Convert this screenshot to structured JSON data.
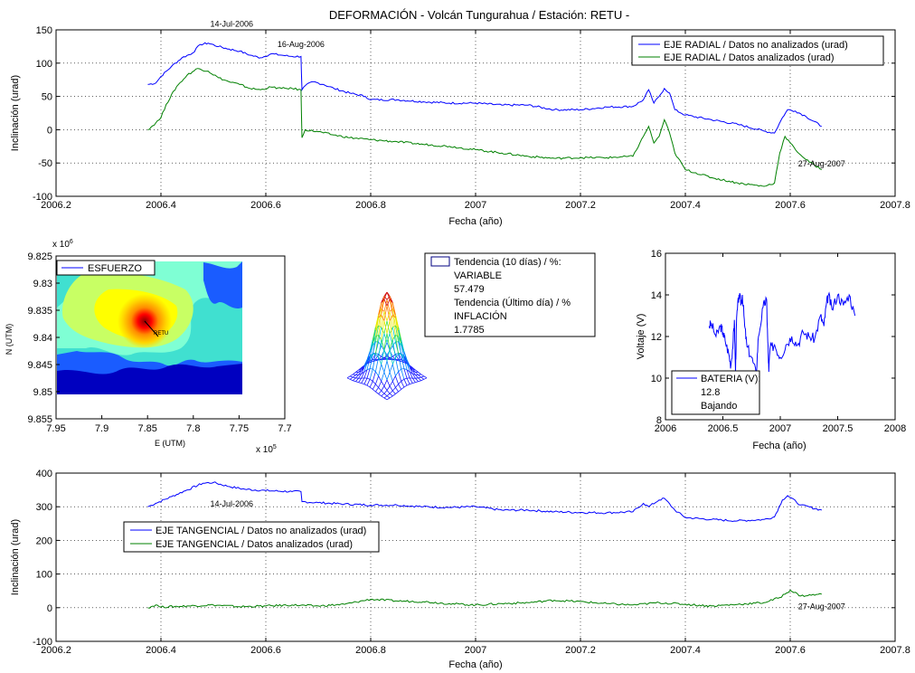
{
  "title": "DEFORMACIÓN - Volcán Tungurahua  /  Estación: RETU -",
  "colors": {
    "blue": "#0000ff",
    "green": "#008000",
    "grid": "#000000",
    "marker": "#000000"
  },
  "chart_data": [
    {
      "id": "radial",
      "type": "line",
      "xlabel": "Fecha (año)",
      "ylabel": "Inclinación (urad)",
      "xlim": [
        2006.2,
        2007.8
      ],
      "ylim": [
        -100,
        150
      ],
      "xticks": [
        2006.2,
        2006.4,
        2006.6,
        2006.8,
        2007,
        2007.2,
        2007.4,
        2007.6,
        2007.8
      ],
      "xtick_labels": [
        "2006.2",
        "2006.4",
        "2006.6",
        "2006.8",
        "2007",
        "2007.2",
        "2007.4",
        "2007.6",
        "2007.8"
      ],
      "yticks": [
        -100,
        -50,
        0,
        50,
        100,
        150
      ],
      "ytick_labels": [
        "-100",
        "-50",
        "0",
        "50",
        "100",
        "150"
      ],
      "grid": true,
      "legend_loc": "top-right",
      "series": [
        {
          "name": "EJE RADIAL / Datos no analizados (urad)",
          "color": "#0000ff",
          "points": [
            [
              2006.375,
              68
            ],
            [
              2006.39,
              70
            ],
            [
              2006.4,
              80
            ],
            [
              2006.42,
              95
            ],
            [
              2006.44,
              108
            ],
            [
              2006.46,
              115
            ],
            [
              2006.475,
              128
            ],
            [
              2006.49,
              130
            ],
            [
              2006.51,
              125
            ],
            [
              2006.53,
              121
            ],
            [
              2006.55,
              118
            ],
            [
              2006.57,
              112
            ],
            [
              2006.59,
              108
            ],
            [
              2006.61,
              114
            ],
            [
              2006.63,
              112
            ],
            [
              2006.65,
              110
            ],
            [
              2006.667,
              110
            ],
            [
              2006.669,
              60
            ],
            [
              2006.675,
              66
            ],
            [
              2006.69,
              72
            ],
            [
              2006.71,
              68
            ],
            [
              2006.73,
              62
            ],
            [
              2006.76,
              55
            ],
            [
              2006.79,
              50
            ],
            [
              2006.8,
              45
            ],
            [
              2006.85,
              45
            ],
            [
              2006.9,
              42
            ],
            [
              2006.95,
              40
            ],
            [
              2007.0,
              40
            ],
            [
              2007.05,
              37
            ],
            [
              2007.1,
              37
            ],
            [
              2007.15,
              30
            ],
            [
              2007.2,
              30
            ],
            [
              2007.25,
              34
            ],
            [
              2007.3,
              35
            ],
            [
              2007.32,
              45
            ],
            [
              2007.33,
              60
            ],
            [
              2007.34,
              40
            ],
            [
              2007.35,
              50
            ],
            [
              2007.36,
              62
            ],
            [
              2007.37,
              55
            ],
            [
              2007.38,
              30
            ],
            [
              2007.4,
              22
            ],
            [
              2007.45,
              15
            ],
            [
              2007.5,
              8
            ],
            [
              2007.55,
              -2
            ],
            [
              2007.57,
              -5
            ],
            [
              2007.585,
              18
            ],
            [
              2007.595,
              30
            ],
            [
              2007.61,
              28
            ],
            [
              2007.63,
              20
            ],
            [
              2007.66,
              5
            ]
          ]
        },
        {
          "name": "EJE RADIAL / Datos analizados (urad)",
          "color": "#008000",
          "points": [
            [
              2006.375,
              0
            ],
            [
              2006.39,
              10
            ],
            [
              2006.4,
              18
            ],
            [
              2006.41,
              38
            ],
            [
              2006.43,
              65
            ],
            [
              2006.45,
              82
            ],
            [
              2006.47,
              92
            ],
            [
              2006.49,
              88
            ],
            [
              2006.51,
              78
            ],
            [
              2006.53,
              72
            ],
            [
              2006.55,
              68
            ],
            [
              2006.57,
              62
            ],
            [
              2006.59,
              60
            ],
            [
              2006.61,
              64
            ],
            [
              2006.63,
              62
            ],
            [
              2006.65,
              62
            ],
            [
              2006.667,
              60
            ],
            [
              2006.669,
              -12
            ],
            [
              2006.675,
              0
            ],
            [
              2006.7,
              -3
            ],
            [
              2006.73,
              -8
            ],
            [
              2006.76,
              -12
            ],
            [
              2006.8,
              -15
            ],
            [
              2006.85,
              -18
            ],
            [
              2006.9,
              -22
            ],
            [
              2006.95,
              -25
            ],
            [
              2007.0,
              -30
            ],
            [
              2007.05,
              -35
            ],
            [
              2007.1,
              -40
            ],
            [
              2007.15,
              -43
            ],
            [
              2007.2,
              -42
            ],
            [
              2007.25,
              -42
            ],
            [
              2007.3,
              -40
            ],
            [
              2007.32,
              -10
            ],
            [
              2007.33,
              5
            ],
            [
              2007.34,
              -20
            ],
            [
              2007.35,
              -10
            ],
            [
              2007.36,
              15
            ],
            [
              2007.37,
              -5
            ],
            [
              2007.38,
              -35
            ],
            [
              2007.4,
              -60
            ],
            [
              2007.45,
              -72
            ],
            [
              2007.5,
              -80
            ],
            [
              2007.55,
              -85
            ],
            [
              2007.57,
              -80
            ],
            [
              2007.58,
              -35
            ],
            [
              2007.59,
              -10
            ],
            [
              2007.61,
              -30
            ],
            [
              2007.63,
              -45
            ],
            [
              2007.66,
              -60
            ]
          ]
        }
      ],
      "annotations": [
        {
          "text": "14-Jul-2006",
          "x": 2006.535,
          "y": 155
        },
        {
          "text": "16-Aug-2006",
          "x": 2006.667,
          "y": 124
        },
        {
          "text": "27-Aug-2007",
          "x": 2007.66,
          "y": -55
        }
      ]
    },
    {
      "id": "tangencial",
      "type": "line",
      "xlabel": "Fecha (año)",
      "ylabel": "Inclinación (urad)",
      "xlim": [
        2006.2,
        2007.8
      ],
      "ylim": [
        -100,
        400
      ],
      "xticks": [
        2006.2,
        2006.4,
        2006.6,
        2006.8,
        2007,
        2007.2,
        2007.4,
        2007.6,
        2007.8
      ],
      "xtick_labels": [
        "2006.2",
        "2006.4",
        "2006.6",
        "2006.8",
        "2007",
        "2007.2",
        "2007.4",
        "2007.6",
        "2007.8"
      ],
      "yticks": [
        -100,
        0,
        100,
        200,
        300,
        400
      ],
      "ytick_labels": [
        "-100",
        "0",
        "100",
        "200",
        "300",
        "400"
      ],
      "grid": true,
      "legend_loc": "center-left",
      "series": [
        {
          "name": "EJE TANGENCIAL / Datos no analizados (urad)",
          "color": "#0000ff",
          "points": [
            [
              2006.375,
              300
            ],
            [
              2006.39,
              310
            ],
            [
              2006.42,
              330
            ],
            [
              2006.45,
              350
            ],
            [
              2006.48,
              370
            ],
            [
              2006.5,
              372
            ],
            [
              2006.53,
              360
            ],
            [
              2006.56,
              352
            ],
            [
              2006.6,
              348
            ],
            [
              2006.65,
              345
            ],
            [
              2006.667,
              345
            ],
            [
              2006.669,
              315
            ],
            [
              2006.7,
              312
            ],
            [
              2006.75,
              308
            ],
            [
              2006.8,
              305
            ],
            [
              2006.85,
              305
            ],
            [
              2006.9,
              300
            ],
            [
              2006.95,
              298
            ],
            [
              2007.0,
              300
            ],
            [
              2007.05,
              290
            ],
            [
              2007.1,
              290
            ],
            [
              2007.15,
              285
            ],
            [
              2007.2,
              283
            ],
            [
              2007.25,
              282
            ],
            [
              2007.3,
              285
            ],
            [
              2007.32,
              310
            ],
            [
              2007.33,
              300
            ],
            [
              2007.35,
              320
            ],
            [
              2007.36,
              325
            ],
            [
              2007.38,
              290
            ],
            [
              2007.4,
              268
            ],
            [
              2007.45,
              262
            ],
            [
              2007.5,
              258
            ],
            [
              2007.55,
              262
            ],
            [
              2007.57,
              270
            ],
            [
              2007.585,
              320
            ],
            [
              2007.595,
              333
            ],
            [
              2007.62,
              305
            ],
            [
              2007.66,
              290
            ]
          ]
        },
        {
          "name": "EJE TANGENCIAL / Datos analizados (urad)",
          "color": "#008000",
          "points": [
            [
              2006.375,
              0
            ],
            [
              2006.39,
              8
            ],
            [
              2006.4,
              2
            ],
            [
              2006.45,
              5
            ],
            [
              2006.5,
              8
            ],
            [
              2006.55,
              3
            ],
            [
              2006.6,
              5
            ],
            [
              2006.65,
              8
            ],
            [
              2006.7,
              5
            ],
            [
              2006.75,
              10
            ],
            [
              2006.8,
              25
            ],
            [
              2006.85,
              20
            ],
            [
              2006.9,
              18
            ],
            [
              2006.95,
              12
            ],
            [
              2007.0,
              8
            ],
            [
              2007.05,
              12
            ],
            [
              2007.1,
              15
            ],
            [
              2007.15,
              22
            ],
            [
              2007.2,
              18
            ],
            [
              2007.25,
              12
            ],
            [
              2007.3,
              8
            ],
            [
              2007.35,
              15
            ],
            [
              2007.4,
              10
            ],
            [
              2007.45,
              5
            ],
            [
              2007.5,
              10
            ],
            [
              2007.55,
              15
            ],
            [
              2007.58,
              30
            ],
            [
              2007.6,
              52
            ],
            [
              2007.62,
              35
            ],
            [
              2007.66,
              40
            ]
          ]
        }
      ],
      "annotations": [
        {
          "text": "14-Jul-2006",
          "x": 2006.535,
          "y": 300
        },
        {
          "text": "27-Aug-2007",
          "x": 2007.66,
          "y": -5
        }
      ]
    },
    {
      "id": "bateria",
      "type": "line",
      "xlabel": "Fecha (año)",
      "ylabel": "Voltaje (V)",
      "xlim": [
        2006,
        2008
      ],
      "ylim": [
        8,
        16
      ],
      "xticks": [
        2006,
        2006.5,
        2007,
        2007.5,
        2008
      ],
      "xtick_labels": [
        "2006",
        "2006.5",
        "2007",
        "2007.5",
        "2008"
      ],
      "yticks": [
        8,
        10,
        12,
        14,
        16
      ],
      "ytick_labels": [
        "8",
        "10",
        "12",
        "14",
        "16"
      ],
      "grid": false,
      "legend_loc": "bottom-left",
      "series": [
        {
          "name": "BATERIA (V):",
          "color": "#0000ff",
          "points": [
            [
              2006.38,
              12.5
            ],
            [
              2006.4,
              12.6
            ],
            [
              2006.44,
              12.0
            ],
            [
              2006.48,
              12.5
            ],
            [
              2006.5,
              12.2
            ],
            [
              2006.52,
              11.8
            ],
            [
              2006.55,
              11.2
            ],
            [
              2006.57,
              10.6
            ],
            [
              2006.59,
              11.8
            ],
            [
              2006.6,
              12.8
            ],
            [
              2006.61,
              10.3
            ],
            [
              2006.62,
              12.9
            ],
            [
              2006.64,
              14.0
            ],
            [
              2006.66,
              13.6
            ],
            [
              2006.67,
              14.0
            ],
            [
              2006.69,
              12.5
            ],
            [
              2006.71,
              11.5
            ],
            [
              2006.75,
              11.0
            ],
            [
              2006.79,
              10.2
            ],
            [
              2006.81,
              12.0
            ],
            [
              2006.85,
              13.4
            ],
            [
              2006.88,
              13.8
            ],
            [
              2006.89,
              12.0
            ],
            [
              2006.9,
              10.3
            ],
            [
              2006.91,
              11.4
            ],
            [
              2006.95,
              11.6
            ],
            [
              2007.0,
              11.0
            ],
            [
              2007.05,
              11.6
            ],
            [
              2007.1,
              12.0
            ],
            [
              2007.15,
              11.6
            ],
            [
              2007.2,
              12.2
            ],
            [
              2007.25,
              12.0
            ],
            [
              2007.3,
              11.9
            ],
            [
              2007.35,
              13.0
            ],
            [
              2007.38,
              12.5
            ],
            [
              2007.4,
              13.5
            ],
            [
              2007.42,
              14.0
            ],
            [
              2007.45,
              13.3
            ],
            [
              2007.5,
              14.0
            ],
            [
              2007.55,
              13.5
            ],
            [
              2007.6,
              14.0
            ],
            [
              2007.65,
              13.0
            ]
          ]
        }
      ],
      "legend_lines": [
        "12.8",
        "Bajando"
      ]
    },
    {
      "id": "esfuerzo",
      "type": "heatmap",
      "xlabel": "E (UTM)",
      "ylabel": "N (UTM)",
      "xlim": [
        7.95,
        7.7
      ],
      "ylim": [
        9.825,
        9.855
      ],
      "x_exponent": "x 10",
      "x_exponent_power": "5",
      "y_exponent": "x 10",
      "y_exponent_power": "6",
      "xticks": [
        7.95,
        7.9,
        7.85,
        7.8,
        7.75,
        7.7
      ],
      "xtick_labels": [
        "7.95",
        "7.9",
        "7.85",
        "7.8",
        "7.75",
        "7.7"
      ],
      "yticks": [
        9.825,
        9.83,
        9.835,
        9.84,
        9.845,
        9.85,
        9.855
      ],
      "ytick_labels": [
        "9.825",
        "9.83",
        "9.835",
        "9.84",
        "9.845",
        "9.85",
        "9.855"
      ],
      "legend": "ESFUERZO",
      "station_label": "RETU"
    }
  ],
  "tendencia_box": {
    "line1": "Tendencia (10 días) / %:",
    "line2": "VARIABLE",
    "line3": "57.479",
    "line4": "Tendencia (Último día) / %",
    "line5": "INFLACIÓN",
    "line6": "1.7785"
  }
}
